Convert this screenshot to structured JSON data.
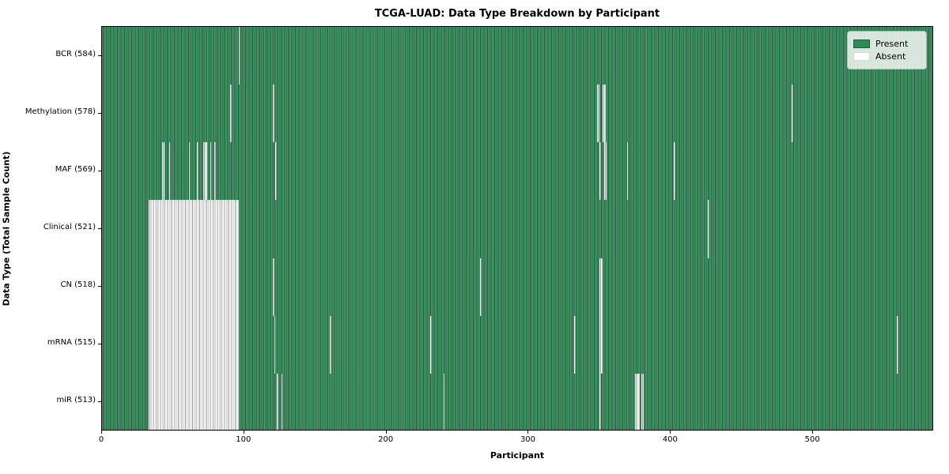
{
  "chart_data": {
    "type": "heatmap",
    "title": "TCGA-LUAD: Data Type Breakdown by Participant",
    "xlabel": "Participant",
    "ylabel": "Data Type (Total Sample Count)",
    "legend": {
      "position": "upper right",
      "entries": [
        {
          "label": "Present",
          "swatch_color": "#2e8b57"
        },
        {
          "label": "Absent",
          "swatch_color": "#ffffff"
        }
      ]
    },
    "total_participants": 585,
    "x_range": [
      0,
      585
    ],
    "x_ticks": [
      0,
      100,
      200,
      300,
      400,
      500
    ],
    "grid": false,
    "colors": {
      "present_mid": "#2e8b57",
      "present_light": "#459668",
      "present_dark": "#1e5c3b",
      "absent": "#ffffff",
      "absent_edge": "#9c9c9c",
      "separator": "#000000"
    },
    "rows": [
      {
        "label": "BCR (584)",
        "data_type": "BCR",
        "present_count": 584,
        "absent_ranges": [
          [
            96,
            96
          ]
        ]
      },
      {
        "label": "Methylation (578)",
        "data_type": "Methylation",
        "present_count": 578,
        "absent_ranges": [
          [
            90,
            90
          ],
          [
            120,
            120
          ],
          [
            348,
            349
          ],
          [
            352,
            353
          ],
          [
            485,
            485
          ]
        ]
      },
      {
        "label": "MAF (569)",
        "data_type": "MAF",
        "present_count": 569,
        "absent_ranges": [
          [
            42,
            43
          ],
          [
            47,
            47
          ],
          [
            61,
            61
          ],
          [
            67,
            67
          ],
          [
            71,
            73
          ],
          [
            76,
            76
          ],
          [
            79,
            79
          ],
          [
            122,
            122
          ],
          [
            350,
            350
          ],
          [
            353,
            354
          ],
          [
            369,
            369
          ],
          [
            402,
            402
          ]
        ]
      },
      {
        "label": "Clinical (521)",
        "data_type": "Clinical",
        "present_count": 521,
        "absent_ranges": [
          [
            33,
            95
          ],
          [
            426,
            426
          ]
        ]
      },
      {
        "label": "CN (518)",
        "data_type": "CN",
        "present_count": 518,
        "absent_ranges": [
          [
            33,
            95
          ],
          [
            120,
            120
          ],
          [
            266,
            266
          ],
          [
            350,
            351
          ]
        ]
      },
      {
        "label": "mRNA (515)",
        "data_type": "mRNA",
        "present_count": 515,
        "absent_ranges": [
          [
            33,
            95
          ],
          [
            121,
            121
          ],
          [
            160,
            160
          ],
          [
            231,
            231
          ],
          [
            332,
            332
          ],
          [
            350,
            351
          ],
          [
            559,
            559
          ]
        ]
      },
      {
        "label": "miR (513)",
        "data_type": "miR",
        "present_count": 513,
        "absent_ranges": [
          [
            33,
            95
          ],
          [
            123,
            123
          ],
          [
            126,
            126
          ],
          [
            240,
            240
          ],
          [
            350,
            350
          ],
          [
            375,
            377
          ],
          [
            379,
            380
          ]
        ]
      }
    ]
  }
}
